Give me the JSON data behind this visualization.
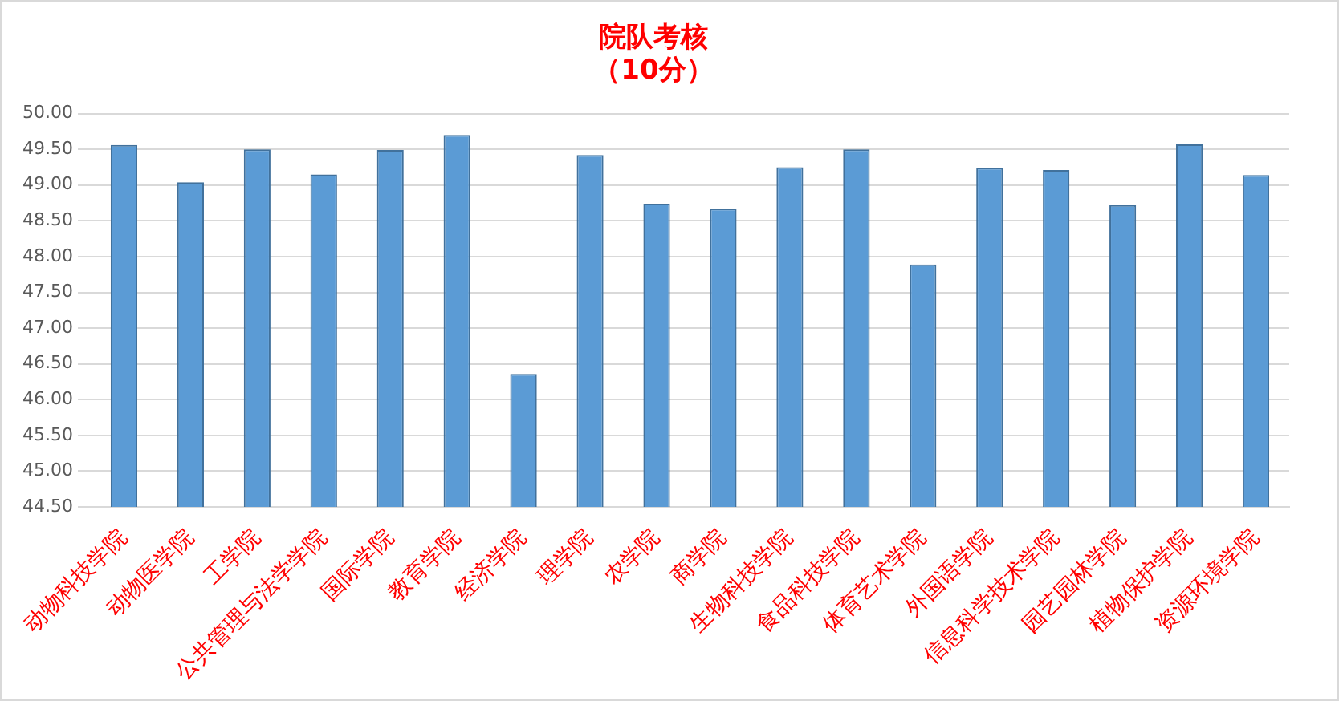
{
  "chart_data": {
    "type": "bar",
    "title": [
      "院队考核",
      "（10分）"
    ],
    "categories": [
      "动物科技学院",
      "动物医学院",
      "工学院",
      "公共管理与法学学院",
      "国际学院",
      "教育学院",
      "经济学院",
      "理学院",
      "农学院",
      "商学院",
      "生物科技学院",
      "食品科技学院",
      "体育艺术学院",
      "外国语学院",
      "信息科学技术学院",
      "园艺园林学院",
      "植物保护学院",
      "资源环境学院"
    ],
    "values": [
      49.56,
      49.04,
      49.5,
      49.15,
      49.49,
      49.7,
      46.36,
      49.42,
      48.74,
      48.67,
      49.25,
      49.5,
      47.89,
      49.24,
      49.21,
      48.72,
      49.57,
      49.14
    ],
    "color": "#5b9bd5",
    "ylim": [
      44.5,
      50
    ],
    "yticks": [
      {
        "value": 44.5,
        "label": "44.50"
      },
      {
        "value": 45,
        "label": "45.00"
      },
      {
        "value": 45.5,
        "label": "45.50"
      },
      {
        "value": 46,
        "label": "46.00"
      },
      {
        "value": 46.5,
        "label": "46.50"
      },
      {
        "value": 47,
        "label": "47.00"
      },
      {
        "value": 47.5,
        "label": "47.50"
      },
      {
        "value": 48,
        "label": "48.00"
      },
      {
        "value": 48.5,
        "label": "48.50"
      },
      {
        "value": 49,
        "label": "49.00"
      },
      {
        "value": 49.5,
        "label": "49.50"
      },
      {
        "value": 50,
        "label": "50.00"
      }
    ],
    "grid": "y",
    "legend": false
  }
}
